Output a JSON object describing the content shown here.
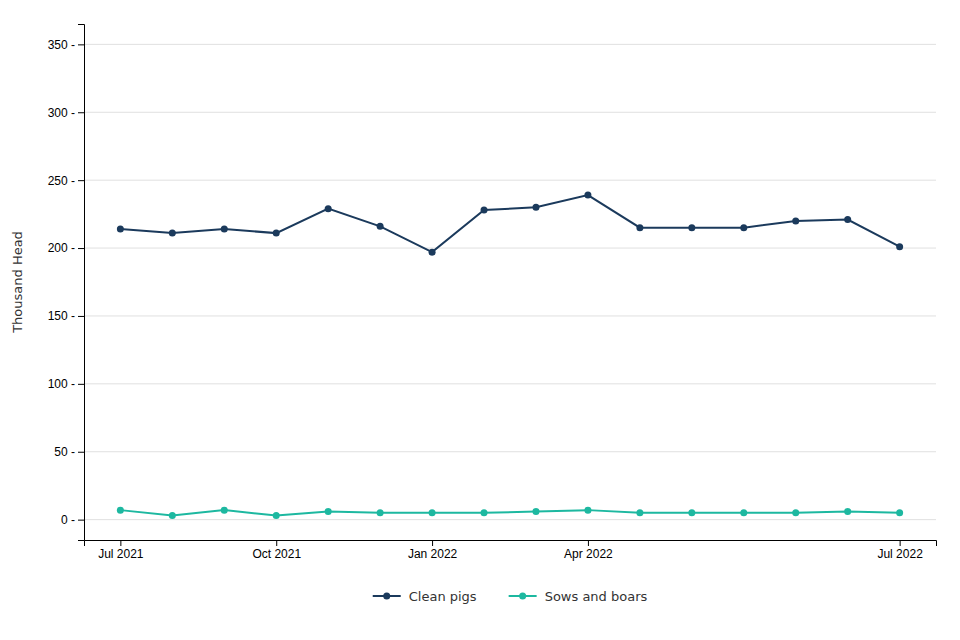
{
  "chart_data": {
    "type": "line",
    "y_label": "Thousand Head",
    "categories": [
      "Jul 2021",
      null,
      null,
      "Oct 2021",
      null,
      null,
      "Jan 2022",
      null,
      null,
      "Apr 2022",
      null,
      null,
      null,
      null,
      null,
      "Jul 2022"
    ],
    "series": [
      {
        "name": "Clean pigs",
        "color": "#1b3a5c",
        "marker": "circle",
        "values": [
          214,
          211,
          214,
          211,
          229,
          216,
          197,
          228,
          230,
          239,
          215,
          215,
          215,
          220,
          221,
          201
        ]
      },
      {
        "name": "Sows and boars",
        "color": "#1db8a0",
        "marker": "circle",
        "values": [
          7,
          3,
          7,
          3,
          6,
          5,
          5,
          5,
          6,
          7,
          5,
          5,
          5,
          5,
          6,
          5
        ]
      }
    ],
    "ylim": [
      -15,
      365
    ],
    "yticks": [
      {
        "value": 0,
        "label": "0 -"
      },
      {
        "value": 50,
        "label": "50 -"
      },
      {
        "value": 100,
        "label": "100 -"
      },
      {
        "value": 150,
        "label": "150 -"
      },
      {
        "value": 200,
        "label": "200 -"
      },
      {
        "value": 250,
        "label": "250 -"
      },
      {
        "value": 300,
        "label": "300 -"
      },
      {
        "value": 350,
        "label": "350 -"
      }
    ],
    "grid": true,
    "legend": "bottom"
  }
}
